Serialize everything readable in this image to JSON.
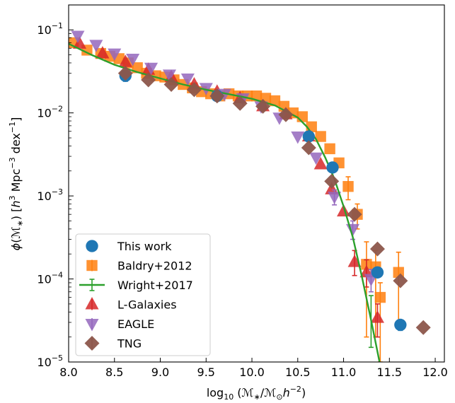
{
  "chart_data": {
    "type": "scatter",
    "title": "",
    "xlabel": "log10 (M*/M⊙h−2)",
    "ylabel": "φ(M*) [h3 Mpc−3 dex−1]",
    "xlim": [
      8.0,
      12.1
    ],
    "ylim_log10": [
      -5,
      -0.7
    ],
    "y_scale": "log",
    "x_ticks": [
      8.0,
      8.5,
      9.0,
      9.5,
      10.0,
      10.5,
      11.0,
      11.5,
      12.0
    ],
    "x_tick_labels": [
      "8.0",
      "8.5",
      "9.0",
      "9.5",
      "10.0",
      "10.5",
      "11.0",
      "11.5",
      "12.0"
    ],
    "y_tick_exponents": [
      -1,
      -2,
      -3,
      -4,
      -5
    ],
    "legend_position": "lower-left",
    "series": [
      {
        "name": "This work",
        "color": "#1f77b4",
        "marker": "circle",
        "x": [
          8.62,
          9.62,
          10.62,
          10.88,
          11.37,
          11.62
        ],
        "y": [
          0.028,
          0.016,
          0.0052,
          0.0022,
          0.00012,
          2.8e-05
        ],
        "y_err_low": [
          0.004,
          0,
          0,
          0,
          0,
          4e-06
        ],
        "y_err_high": [
          0.004,
          0,
          0,
          0,
          0,
          4e-06
        ]
      },
      {
        "name": "Baldry+2012",
        "color": "#ff7f0e",
        "marker": "square",
        "x": [
          8.05,
          8.2,
          8.35,
          8.45,
          8.55,
          8.65,
          8.75,
          8.85,
          8.95,
          9.05,
          9.15,
          9.25,
          9.35,
          9.45,
          9.55,
          9.65,
          9.75,
          9.85,
          9.95,
          10.05,
          10.15,
          10.25,
          10.35,
          10.45,
          10.55,
          10.65,
          10.75,
          10.85,
          10.95,
          11.05,
          11.15,
          11.25,
          11.35,
          11.4,
          11.6
        ],
        "y": [
          0.07,
          0.057,
          0.052,
          0.048,
          0.045,
          0.04,
          0.035,
          0.03,
          0.028,
          0.027,
          0.025,
          0.022,
          0.02,
          0.018,
          0.017,
          0.016,
          0.017,
          0.016,
          0.016,
          0.016,
          0.015,
          0.014,
          0.012,
          0.01,
          0.009,
          0.0068,
          0.0052,
          0.0037,
          0.0025,
          0.0013,
          0.0006,
          0.00015,
          0.00014,
          6e-05,
          0.00012
        ],
        "y_err_low": [
          0,
          0,
          0,
          0,
          0,
          0,
          0,
          0,
          0,
          0,
          0,
          0,
          0,
          0,
          0,
          0,
          0,
          0,
          0,
          0,
          0,
          0,
          0,
          0,
          0,
          0,
          0,
          0,
          0,
          0.0004,
          0.0002,
          0.00013,
          0.00012,
          5e-05,
          9e-05
        ],
        "y_err_high": [
          0,
          0,
          0,
          0,
          0,
          0,
          0,
          0,
          0,
          0,
          0,
          0,
          0,
          0,
          0,
          0,
          0,
          0,
          0,
          0,
          0,
          0,
          0,
          0,
          0,
          0,
          0,
          0,
          0,
          0.0004,
          0.0002,
          0.00013,
          8e-05,
          3e-05,
          9e-05
        ]
      },
      {
        "name": "Wright+2017",
        "color": "#2ca02c",
        "marker": "line",
        "x": [
          8.0,
          8.25,
          8.5,
          8.75,
          9.0,
          9.25,
          9.5,
          9.75,
          10.0,
          10.25,
          10.5,
          10.6,
          10.7,
          10.8,
          10.9,
          11.0,
          11.1,
          11.2,
          11.3,
          11.35,
          11.4
        ],
        "y": [
          0.068,
          0.05,
          0.038,
          0.031,
          0.026,
          0.022,
          0.019,
          0.0168,
          0.0148,
          0.0123,
          0.0088,
          0.0068,
          0.0048,
          0.0029,
          0.0016,
          0.00075,
          0.00032,
          0.000107,
          3.2e-05,
          1.7e-05,
          9.1e-06
        ],
        "err_x": [
          11.3
        ],
        "err_y": [
          3.2e-05
        ],
        "err_low": [
          1.7e-05
        ],
        "err_high": [
          3.1e-05
        ]
      },
      {
        "name": "L-Galaxies",
        "color": "#d62728",
        "marker": "triangle-up",
        "x": [
          8.12,
          8.37,
          8.62,
          8.87,
          9.12,
          9.37,
          9.62,
          9.87,
          10.12,
          10.37,
          10.62,
          10.75,
          10.87,
          11.0,
          11.12,
          11.25,
          11.37
        ],
        "y": [
          0.068,
          0.052,
          0.041,
          0.033,
          0.027,
          0.022,
          0.018,
          0.015,
          0.012,
          0.0096,
          0.0052,
          0.0024,
          0.0012,
          0.00065,
          0.00016,
          0.00012,
          3.4e-05
        ],
        "y_err_low": [
          0,
          0,
          0,
          0,
          0,
          0,
          0,
          0,
          0,
          0,
          0,
          0,
          0,
          0,
          5e-05,
          4e-05,
          1.4e-05
        ],
        "y_err_high": [
          0,
          0,
          0,
          0,
          0,
          0,
          0,
          0,
          0,
          0,
          0,
          0,
          0,
          0,
          6e-05,
          5e-05,
          1.6e-05
        ]
      },
      {
        "name": "EAGLE",
        "color": "#9467bd",
        "marker": "triangle-down",
        "x": [
          8.1,
          8.3,
          8.5,
          8.7,
          8.9,
          9.1,
          9.3,
          9.5,
          9.7,
          9.9,
          10.1,
          10.3,
          10.5,
          10.7,
          10.9,
          11.1,
          11.3
        ],
        "y": [
          0.085,
          0.066,
          0.052,
          0.045,
          0.035,
          0.029,
          0.026,
          0.02,
          0.017,
          0.015,
          0.012,
          0.0088,
          0.0052,
          0.0029,
          0.00098,
          0.0004,
          0.0001
        ],
        "y_err_low": [
          0,
          0,
          0,
          0,
          0,
          0,
          0,
          0,
          0,
          0,
          0,
          0,
          0,
          0,
          0.0002,
          0.0001,
          3e-05
        ],
        "y_err_high": [
          0,
          0,
          0,
          0,
          0,
          0,
          0,
          0,
          0,
          0,
          0,
          0,
          0,
          0,
          0.0002,
          0.0001,
          3e-05
        ]
      },
      {
        "name": "TNG",
        "color": "#8c564b",
        "marker": "diamond",
        "x": [
          8.62,
          8.87,
          9.12,
          9.37,
          9.62,
          9.87,
          10.12,
          10.37,
          10.62,
          10.87,
          11.12,
          11.37,
          11.62,
          11.87
        ],
        "y": [
          0.03,
          0.025,
          0.022,
          0.019,
          0.016,
          0.013,
          0.012,
          0.0095,
          0.0038,
          0.0015,
          0.0006,
          0.00023,
          9.5e-05,
          2.6e-05
        ],
        "y_err_low": [
          0,
          0,
          0,
          0,
          0,
          0,
          0,
          0,
          0,
          0,
          0,
          0,
          0,
          0
        ],
        "y_err_high": [
          0,
          0,
          0,
          0,
          0,
          0,
          0,
          0,
          0,
          0,
          0,
          0,
          0,
          0
        ]
      }
    ]
  }
}
